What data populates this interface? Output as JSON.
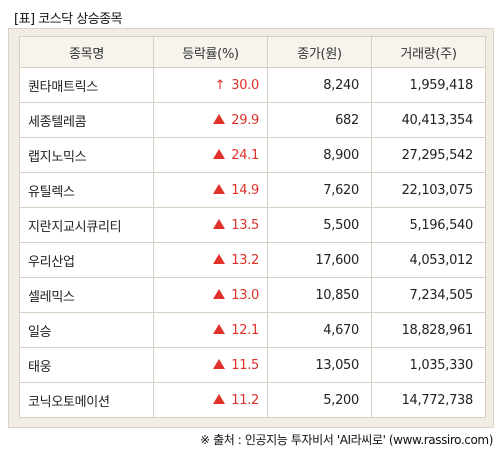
{
  "title": "[표] 코스닥 상승종목",
  "columns": [
    "종목명",
    "등락률(%)",
    "종가(원)",
    "거래량(주)"
  ],
  "rows": [
    {
      "name": "퀀타매트릭스",
      "arrow": "up-line",
      "rate": "30.0",
      "price": "8,240",
      "volume": "1,959,418"
    },
    {
      "name": "세종텔레콤",
      "arrow": "up-triangle",
      "rate": "29.9",
      "price": "682",
      "volume": "40,413,354"
    },
    {
      "name": "랩지노믹스",
      "arrow": "up-triangle",
      "rate": "24.1",
      "price": "8,900",
      "volume": "27,295,542"
    },
    {
      "name": "유틸렉스",
      "arrow": "up-triangle",
      "rate": "14.9",
      "price": "7,620",
      "volume": "22,103,075"
    },
    {
      "name": "지란지교시큐리티",
      "arrow": "up-triangle",
      "rate": "13.5",
      "price": "5,500",
      "volume": "5,196,540"
    },
    {
      "name": "우리산업",
      "arrow": "up-triangle",
      "rate": "13.2",
      "price": "17,600",
      "volume": "4,053,012"
    },
    {
      "name": "셀레믹스",
      "arrow": "up-triangle",
      "rate": "13.0",
      "price": "10,850",
      "volume": "7,234,505"
    },
    {
      "name": "일승",
      "arrow": "up-triangle",
      "rate": "12.1",
      "price": "4,670",
      "volume": "18,828,961"
    },
    {
      "name": "태웅",
      "arrow": "up-triangle",
      "rate": "11.5",
      "price": "13,050",
      "volume": "1,035,330"
    },
    {
      "name": "코닉오토메이션",
      "arrow": "up-triangle",
      "rate": "11.2",
      "price": "5,200",
      "volume": "14,772,738"
    }
  ],
  "source": "※ 출처 : 인공지능 투자비서 'AI라씨로' (www.rassiro.com)",
  "colors": {
    "up": "#e0312a",
    "header_bg": "#f7f4ee",
    "frame_bg": "#f1ede4"
  }
}
